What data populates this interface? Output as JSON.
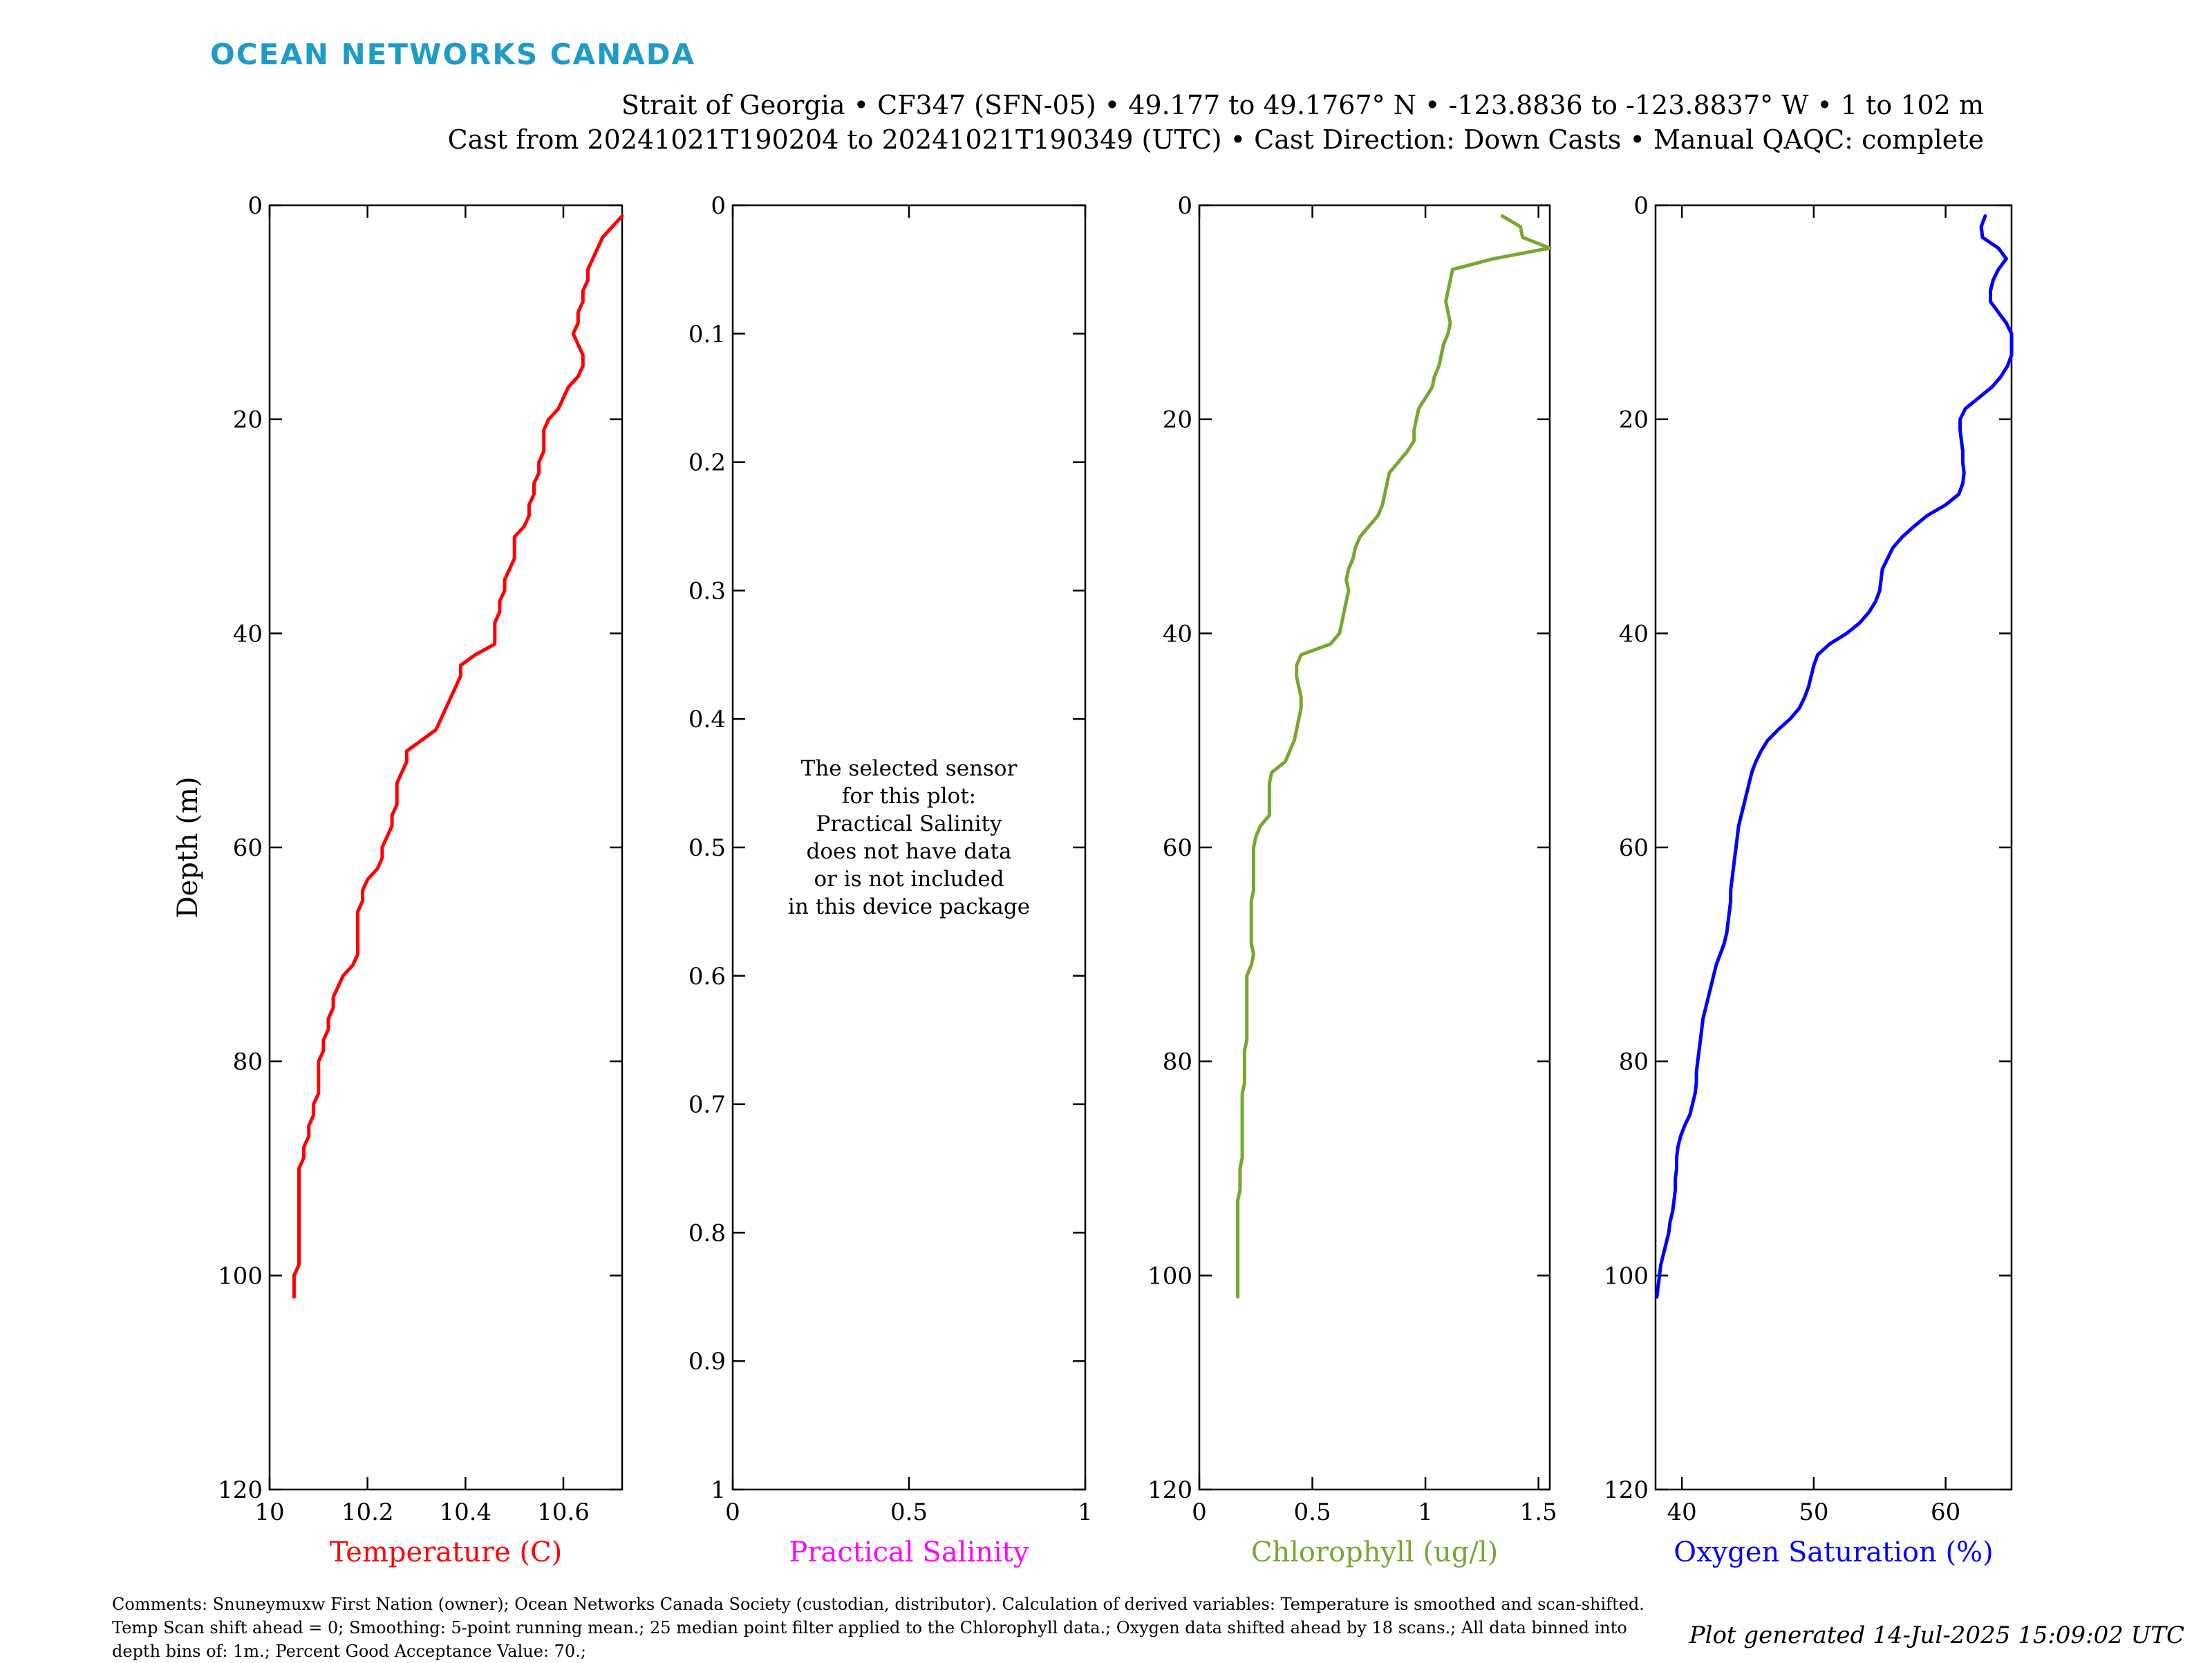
{
  "logo": "OCEAN NETWORKS CANADA",
  "header": {
    "line1": "Strait of Georgia • CF347 (SFN-05) • 49.177 to 49.1767° N • -123.8836 to -123.8837° W • 1 to 102 m",
    "line2": "Cast from 20241021T190204 to 20241021T190349 (UTC) • Cast Direction: Down Casts • Manual QAQC: complete"
  },
  "footer": {
    "comments": "Comments: Snuneymuxw First Nation (owner); Ocean Networks Canada Society (custodian, distributor). Calculation of derived variables: Temperature is smoothed and scan-shifted. Temp Scan shift ahead = 0; Smoothing: 5-point running mean.; 25 median point filter applied to the Chlorophyll data.; Oxygen data shifted ahead by 18 scans.; All data binned into depth bins of: 1m.; Percent Good Acceptance Value: 70.;",
    "generated": "Plot generated 14-Jul-2025 15:09:02 UTC"
  },
  "chart_data": [
    {
      "type": "line",
      "xlabel": "Temperature (C)",
      "ylabel": "Depth (m)",
      "color": "#ff0000",
      "xlim": [
        10,
        10.72
      ],
      "ylim": [
        0,
        120
      ],
      "y_reversed": true,
      "xticks": [
        {
          "v": 10,
          "t": "10"
        },
        {
          "v": 10.2,
          "t": "10.2"
        },
        {
          "v": 10.4,
          "t": "10.4"
        },
        {
          "v": 10.6,
          "t": "10.6"
        }
      ],
      "yticks": [
        {
          "v": 0,
          "t": "0"
        },
        {
          "v": 20,
          "t": "20"
        },
        {
          "v": 40,
          "t": "40"
        },
        {
          "v": 60,
          "t": "60"
        },
        {
          "v": 80,
          "t": "80"
        },
        {
          "v": 100,
          "t": "100"
        },
        {
          "v": 120,
          "t": "120"
        }
      ],
      "x": [
        10.72,
        10.7,
        10.68,
        10.67,
        10.66,
        10.65,
        10.65,
        10.64,
        10.64,
        10.63,
        10.63,
        10.62,
        10.63,
        10.64,
        10.64,
        10.63,
        10.61,
        10.6,
        10.59,
        10.57,
        10.56,
        10.56,
        10.56,
        10.55,
        10.55,
        10.54,
        10.54,
        10.53,
        10.53,
        10.52,
        10.5,
        10.5,
        10.5,
        10.49,
        10.48,
        10.48,
        10.47,
        10.47,
        10.46,
        10.46,
        10.46,
        10.42,
        10.39,
        10.39,
        10.38,
        10.37,
        10.36,
        10.35,
        10.34,
        10.31,
        10.28,
        10.28,
        10.27,
        10.26,
        10.26,
        10.26,
        10.25,
        10.25,
        10.24,
        10.23,
        10.23,
        10.22,
        10.2,
        10.19,
        10.19,
        10.18,
        10.18,
        10.18,
        10.18,
        10.18,
        10.17,
        10.15,
        10.14,
        10.13,
        10.13,
        10.12,
        10.12,
        10.11,
        10.11,
        10.1,
        10.1,
        10.1,
        10.1,
        10.09,
        10.09,
        10.08,
        10.08,
        10.07,
        10.07,
        10.06,
        10.06,
        10.06,
        10.06,
        10.06,
        10.06,
        10.06,
        10.06,
        10.06,
        10.06,
        10.05,
        10.05,
        10.05
      ],
      "y": [
        1,
        2,
        3,
        4,
        5,
        6,
        7,
        8,
        9,
        10,
        11,
        12,
        13,
        14,
        15,
        16,
        17,
        18,
        19,
        20,
        21,
        22,
        23,
        24,
        25,
        26,
        27,
        28,
        29,
        30,
        31,
        32,
        33,
        34,
        35,
        36,
        37,
        38,
        39,
        40,
        41,
        42,
        43,
        44,
        45,
        46,
        47,
        48,
        49,
        50,
        51,
        52,
        53,
        54,
        55,
        56,
        57,
        58,
        59,
        60,
        61,
        62,
        63,
        64,
        65,
        66,
        67,
        68,
        69,
        70,
        71,
        72,
        73,
        74,
        75,
        76,
        77,
        78,
        79,
        80,
        81,
        82,
        83,
        84,
        85,
        86,
        87,
        88,
        89,
        90,
        91,
        92,
        93,
        94,
        95,
        96,
        97,
        98,
        99,
        100,
        101,
        102
      ]
    },
    {
      "type": "line",
      "xlabel": "Practical Salinity",
      "ylabel": "",
      "color": "#ff00ff",
      "xlim": [
        0,
        1
      ],
      "ylim": [
        0,
        1
      ],
      "y_reversed": true,
      "xticks": [
        {
          "v": 0,
          "t": "0"
        },
        {
          "v": 0.5,
          "t": "0.5"
        },
        {
          "v": 1,
          "t": "1"
        }
      ],
      "yticks": [
        {
          "v": 0,
          "t": "0"
        },
        {
          "v": 0.1,
          "t": "0.1"
        },
        {
          "v": 0.2,
          "t": "0.2"
        },
        {
          "v": 0.3,
          "t": "0.3"
        },
        {
          "v": 0.4,
          "t": "0.4"
        },
        {
          "v": 0.5,
          "t": "0.5"
        },
        {
          "v": 0.6,
          "t": "0.6"
        },
        {
          "v": 0.7,
          "t": "0.7"
        },
        {
          "v": 0.8,
          "t": "0.8"
        },
        {
          "v": 0.9,
          "t": "0.9"
        },
        {
          "v": 1,
          "t": "1"
        }
      ],
      "x": [],
      "y": [],
      "annotation": [
        "The selected sensor",
        "for this plot:",
        "Practical Salinity",
        "does not have data",
        "or is not included",
        "in this device package"
      ]
    },
    {
      "type": "line",
      "xlabel": "Chlorophyll (ug/l)",
      "ylabel": "",
      "color": "#76a832",
      "xlim": [
        0,
        1.55
      ],
      "ylim": [
        0,
        120
      ],
      "y_reversed": true,
      "xticks": [
        {
          "v": 0,
          "t": "0"
        },
        {
          "v": 0.5,
          "t": "0.5"
        },
        {
          "v": 1,
          "t": "1"
        },
        {
          "v": 1.5,
          "t": "1.5"
        }
      ],
      "yticks": [
        {
          "v": 0,
          "t": "0"
        },
        {
          "v": 20,
          "t": "20"
        },
        {
          "v": 40,
          "t": "40"
        },
        {
          "v": 60,
          "t": "60"
        },
        {
          "v": 80,
          "t": "80"
        },
        {
          "v": 100,
          "t": "100"
        },
        {
          "v": 120,
          "t": "120"
        }
      ],
      "x": [
        1.34,
        1.42,
        1.43,
        1.55,
        1.3,
        1.12,
        1.11,
        1.1,
        1.09,
        1.1,
        1.11,
        1.1,
        1.08,
        1.07,
        1.06,
        1.04,
        1.03,
        1.0,
        0.97,
        0.96,
        0.95,
        0.95,
        0.92,
        0.88,
        0.84,
        0.83,
        0.82,
        0.81,
        0.79,
        0.75,
        0.71,
        0.69,
        0.68,
        0.66,
        0.65,
        0.66,
        0.65,
        0.64,
        0.63,
        0.62,
        0.58,
        0.45,
        0.43,
        0.43,
        0.44,
        0.45,
        0.45,
        0.44,
        0.43,
        0.42,
        0.4,
        0.38,
        0.32,
        0.31,
        0.31,
        0.31,
        0.31,
        0.27,
        0.25,
        0.24,
        0.24,
        0.24,
        0.24,
        0.24,
        0.23,
        0.23,
        0.23,
        0.23,
        0.23,
        0.24,
        0.23,
        0.21,
        0.21,
        0.21,
        0.21,
        0.21,
        0.21,
        0.21,
        0.2,
        0.2,
        0.2,
        0.2,
        0.19,
        0.19,
        0.19,
        0.19,
        0.19,
        0.19,
        0.19,
        0.18,
        0.18,
        0.18,
        0.17,
        0.17,
        0.17,
        0.17,
        0.17,
        0.17,
        0.17,
        0.17,
        0.17,
        0.17
      ],
      "y": [
        1,
        2,
        3,
        4,
        5,
        6,
        7,
        8,
        9,
        10,
        11,
        12,
        13,
        14,
        15,
        16,
        17,
        18,
        19,
        20,
        21,
        22,
        23,
        24,
        25,
        26,
        27,
        28,
        29,
        30,
        31,
        32,
        33,
        34,
        35,
        36,
        37,
        38,
        39,
        40,
        41,
        42,
        43,
        44,
        45,
        46,
        47,
        48,
        49,
        50,
        51,
        52,
        53,
        54,
        55,
        56,
        57,
        58,
        59,
        60,
        61,
        62,
        63,
        64,
        65,
        66,
        67,
        68,
        69,
        70,
        71,
        72,
        73,
        74,
        75,
        76,
        77,
        78,
        79,
        80,
        81,
        82,
        83,
        84,
        85,
        86,
        87,
        88,
        89,
        90,
        91,
        92,
        93,
        94,
        95,
        96,
        97,
        98,
        99,
        100,
        101,
        102
      ]
    },
    {
      "type": "line",
      "xlabel": "Oxygen Saturation (%)",
      "ylabel": "",
      "color": "#0000ff",
      "xlim": [
        38,
        65
      ],
      "ylim": [
        0,
        120
      ],
      "y_reversed": true,
      "xticks": [
        {
          "v": 40,
          "t": "40"
        },
        {
          "v": 50,
          "t": "50"
        },
        {
          "v": 60,
          "t": "60"
        }
      ],
      "yticks": [
        {
          "v": 0,
          "t": "0"
        },
        {
          "v": 20,
          "t": "20"
        },
        {
          "v": 40,
          "t": "40"
        },
        {
          "v": 60,
          "t": "60"
        },
        {
          "v": 80,
          "t": "80"
        },
        {
          "v": 100,
          "t": "100"
        },
        {
          "v": 120,
          "t": "120"
        }
      ],
      "x": [
        63.0,
        62.7,
        62.8,
        64.0,
        64.6,
        64.0,
        63.6,
        63.4,
        63.4,
        64.0,
        64.6,
        65.0,
        65.0,
        65.0,
        64.7,
        64.2,
        63.5,
        62.5,
        61.5,
        61.1,
        61.1,
        61.2,
        61.3,
        61.3,
        61.4,
        61.3,
        61.0,
        60.0,
        58.6,
        57.6,
        56.7,
        56.0,
        55.6,
        55.2,
        55.1,
        55.0,
        54.7,
        54.2,
        53.5,
        52.5,
        51.2,
        50.3,
        50.0,
        49.8,
        49.6,
        49.3,
        48.9,
        48.2,
        47.3,
        46.5,
        46.0,
        45.6,
        45.3,
        45.1,
        44.9,
        44.7,
        44.5,
        44.3,
        44.2,
        44.1,
        44.0,
        43.9,
        43.8,
        43.7,
        43.7,
        43.6,
        43.5,
        43.4,
        43.2,
        42.9,
        42.6,
        42.4,
        42.2,
        42.0,
        41.8,
        41.6,
        41.5,
        41.4,
        41.3,
        41.2,
        41.1,
        41.1,
        41.0,
        40.8,
        40.6,
        40.2,
        39.9,
        39.7,
        39.6,
        39.6,
        39.5,
        39.5,
        39.4,
        39.3,
        39.1,
        39.0,
        38.8,
        38.6,
        38.4,
        38.3,
        38.2,
        38.1
      ],
      "y": [
        1,
        2,
        3,
        4,
        5,
        6,
        7,
        8,
        9,
        10,
        11,
        12,
        13,
        14,
        15,
        16,
        17,
        18,
        19,
        20,
        21,
        22,
        23,
        24,
        25,
        26,
        27,
        28,
        29,
        30,
        31,
        32,
        33,
        34,
        35,
        36,
        37,
        38,
        39,
        40,
        41,
        42,
        43,
        44,
        45,
        46,
        47,
        48,
        49,
        50,
        51,
        52,
        53,
        54,
        55,
        56,
        57,
        58,
        59,
        60,
        61,
        62,
        63,
        64,
        65,
        66,
        67,
        68,
        69,
        70,
        71,
        72,
        73,
        74,
        75,
        76,
        77,
        78,
        79,
        80,
        81,
        82,
        83,
        84,
        85,
        86,
        87,
        88,
        89,
        90,
        91,
        92,
        93,
        94,
        95,
        96,
        97,
        98,
        99,
        100,
        101,
        102
      ]
    }
  ]
}
